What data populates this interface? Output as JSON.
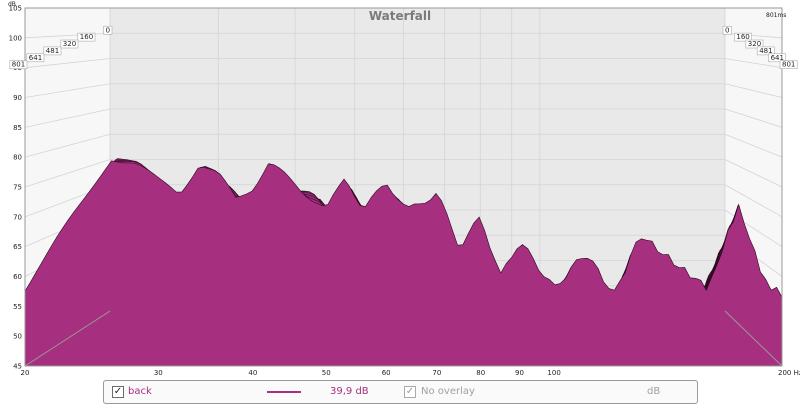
{
  "chart_data": {
    "type": "area",
    "title": "Waterfall",
    "y_unit": "dB",
    "x_unit": "Hz",
    "depth_unit": "ms",
    "ylim": [
      45,
      105
    ],
    "y_ticks": [
      "105",
      "100",
      "95",
      "90",
      "85",
      "80",
      "75",
      "70",
      "65",
      "60",
      "55",
      "50",
      "45"
    ],
    "x_ticks": [
      "20",
      "30",
      "40",
      "50",
      "60",
      "70",
      "80",
      "90",
      "100",
      "200 Hz"
    ],
    "depth_ticks_left": [
      "0",
      "160",
      "320",
      "481",
      "641",
      "801"
    ],
    "depth_ticks_right": [
      "0",
      "160",
      "320",
      "481",
      "641",
      "801"
    ],
    "depth_max_label": "801ms",
    "fill_color": "#a6307f",
    "grid": true,
    "front_slice_db": [
      [
        20,
        58
      ],
      [
        22,
        66
      ],
      [
        24,
        73
      ],
      [
        26,
        80
      ],
      [
        28,
        79
      ],
      [
        30,
        76
      ],
      [
        32,
        74
      ],
      [
        34,
        79
      ],
      [
        36,
        77
      ],
      [
        38,
        73
      ],
      [
        40,
        75
      ],
      [
        42,
        79
      ],
      [
        45,
        76
      ],
      [
        47,
        74
      ],
      [
        50,
        71
      ],
      [
        53,
        77
      ],
      [
        56,
        71
      ],
      [
        60,
        76
      ],
      [
        64,
        71
      ],
      [
        70,
        74
      ],
      [
        75,
        65
      ],
      [
        80,
        70
      ],
      [
        85,
        60
      ],
      [
        90,
        66
      ],
      [
        100,
        58
      ],
      [
        110,
        64
      ],
      [
        120,
        57
      ],
      [
        130,
        67
      ],
      [
        145,
        62
      ],
      [
        160,
        58
      ],
      [
        175,
        72
      ],
      [
        190,
        59
      ],
      [
        200,
        57
      ]
    ]
  },
  "legend": {
    "series_checked": true,
    "series_name": "back",
    "series_value": "39,9 dB",
    "series_color": "#a6307f",
    "overlay_checked": true,
    "overlay_label": "No overlay",
    "overlay_unit": "dB"
  }
}
